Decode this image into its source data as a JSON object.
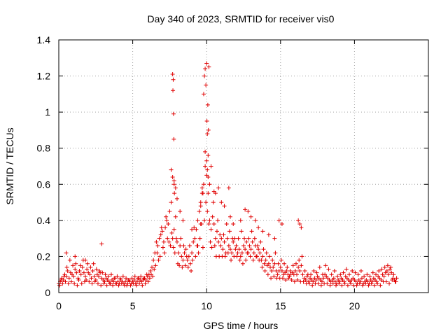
{
  "chart_data": {
    "type": "scatter",
    "title": "Day 340 of 2023, SRMTID for receiver vis0",
    "xlabel": "GPS time / hours",
    "ylabel": "SRMTID / TECUs",
    "xlim": [
      0,
      25
    ],
    "ylim": [
      0,
      1.4
    ],
    "xticks": [
      0,
      5,
      10,
      15,
      20
    ],
    "xtick_labels": [
      "0",
      "5",
      "10",
      "15",
      "20"
    ],
    "yticks": [
      0,
      0.2,
      0.4,
      0.6,
      0.8,
      1.0,
      1.2,
      1.4
    ],
    "ytick_labels": [
      "0",
      "0.2",
      "0.4",
      "0.6",
      "0.8",
      "1",
      "1.2",
      "1.4"
    ],
    "grid": true,
    "marker": "+",
    "marker_color": "#e00000",
    "series": [
      {
        "name": "vis0",
        "x": [
          0.0,
          0.1,
          0.2,
          0.3,
          0.4,
          0.5,
          0.6,
          0.7,
          0.8,
          0.9,
          1.0,
          1.1,
          1.2,
          1.3,
          1.4,
          1.5,
          1.6,
          1.7,
          1.8,
          1.9,
          2.0,
          2.1,
          2.2,
          2.3,
          2.4,
          2.5,
          2.6,
          2.7,
          2.8,
          2.9,
          3.0,
          3.1,
          3.2,
          3.3,
          3.4,
          3.5,
          3.6,
          3.7,
          3.8,
          3.9,
          4.0,
          4.1,
          4.2,
          4.3,
          4.4,
          4.5,
          4.6,
          4.7,
          4.8,
          4.9,
          5.0,
          5.1,
          5.2,
          5.3,
          5.4,
          5.5,
          5.6,
          5.7,
          5.8,
          5.9,
          6.0,
          6.1,
          6.2,
          6.3,
          6.4,
          6.5,
          6.6,
          6.7,
          6.8,
          6.9,
          7.0,
          7.1,
          7.2,
          7.3,
          7.4,
          7.5,
          7.6,
          7.7,
          7.8,
          7.9,
          8.0,
          8.1,
          8.2,
          8.3,
          8.4,
          8.5,
          8.6,
          8.7,
          8.8,
          8.9,
          9.0,
          9.1,
          9.2,
          9.3,
          9.4,
          9.5,
          9.6,
          9.7,
          9.8,
          9.9,
          10.0,
          10.1,
          10.2,
          10.3,
          10.4,
          10.5,
          10.6,
          10.7,
          10.8,
          10.9,
          11.0,
          11.1,
          11.2,
          11.3,
          11.4,
          11.5,
          11.6,
          11.7,
          11.8,
          11.9,
          12.0,
          12.1,
          12.2,
          12.3,
          12.4,
          12.5,
          12.6,
          12.7,
          12.8,
          12.9,
          13.0,
          13.1,
          13.2,
          13.3,
          13.4,
          13.5,
          13.6,
          13.7,
          13.8,
          13.9,
          14.0,
          14.1,
          14.2,
          14.3,
          14.4,
          14.5,
          14.6,
          14.7,
          14.8,
          14.9,
          15.0,
          15.1,
          15.2,
          15.3,
          15.4,
          15.5,
          15.6,
          15.7,
          15.8,
          15.9,
          16.0,
          16.1,
          16.2,
          16.3,
          16.4,
          16.5,
          16.6,
          16.7,
          16.8,
          16.9,
          17.0,
          17.1,
          17.2,
          17.3,
          17.4,
          17.5,
          17.6,
          17.7,
          17.8,
          17.9,
          18.0,
          18.1,
          18.2,
          18.3,
          18.4,
          18.5,
          18.6,
          18.7,
          18.8,
          18.9,
          19.0,
          19.1,
          19.2,
          19.3,
          19.4,
          19.5,
          19.6,
          19.7,
          19.8,
          19.9,
          20.0,
          20.1,
          20.2,
          20.3,
          20.4,
          20.5,
          20.6,
          20.7,
          20.8,
          20.9,
          21.0,
          21.1,
          21.2,
          21.3,
          21.4,
          21.5,
          21.6,
          21.7,
          21.8,
          21.9,
          22.0,
          22.1,
          22.2,
          22.3,
          22.4,
          22.5,
          22.6,
          22.7,
          22.8,
          0.05,
          0.15,
          0.25,
          0.35,
          0.45,
          0.55,
          0.65,
          0.75,
          0.85,
          0.95,
          1.05,
          1.15,
          1.25,
          1.35,
          1.45,
          1.55,
          1.65,
          1.75,
          1.85,
          1.95,
          2.05,
          2.15,
          2.25,
          2.35,
          2.45,
          2.55,
          2.65,
          2.75,
          2.85,
          2.95,
          3.05,
          3.15,
          3.25,
          3.35,
          3.45,
          3.55,
          3.65,
          3.75,
          3.85,
          3.95,
          4.05,
          4.15,
          4.25,
          4.35,
          4.45,
          4.55,
          4.65,
          4.75,
          4.85,
          4.95,
          5.05,
          5.15,
          5.25,
          5.35,
          5.45,
          5.55,
          5.65,
          5.75,
          5.85,
          5.95,
          6.05,
          6.15,
          6.25,
          6.35,
          6.45,
          6.55,
          6.65,
          6.75,
          6.85,
          6.95,
          7.05,
          7.15,
          7.25,
          7.35,
          7.45,
          7.55,
          7.65,
          7.75,
          7.85,
          7.95,
          8.05,
          8.15,
          8.25,
          8.35,
          8.45,
          8.55,
          8.65,
          8.75,
          8.85,
          8.95,
          9.05,
          9.15,
          9.25,
          9.35,
          9.45,
          9.55,
          9.65,
          9.75,
          9.85,
          9.95,
          10.05,
          10.15,
          10.25,
          10.35,
          10.45,
          10.55,
          10.65,
          10.75,
          10.85,
          10.95,
          11.05,
          11.15,
          11.25,
          11.35,
          11.45,
          11.55,
          11.65,
          11.75,
          11.85,
          11.95,
          12.05,
          12.15,
          12.25,
          12.35,
          12.45,
          12.55,
          12.65,
          12.75,
          12.85,
          12.95,
          13.05,
          13.15,
          13.25,
          13.35,
          13.45,
          13.55,
          13.65,
          13.75,
          13.85,
          13.95,
          14.05,
          14.15,
          14.25,
          14.35,
          14.45,
          14.55,
          14.65,
          14.75,
          14.85,
          14.95,
          15.05,
          15.15,
          15.25,
          15.35,
          15.45,
          15.55,
          15.65,
          15.75,
          15.85,
          15.95,
          16.05,
          16.15,
          16.25,
          16.35,
          16.45,
          16.55,
          16.65,
          16.75,
          16.85,
          16.95,
          17.05,
          17.15,
          17.25,
          17.35,
          17.45,
          17.55,
          17.65,
          17.75,
          17.85,
          17.95,
          18.05,
          18.15,
          18.25,
          18.35,
          18.45,
          18.55,
          18.65,
          18.75,
          18.85,
          18.95,
          19.05,
          19.15,
          19.25,
          19.35,
          19.45,
          19.55,
          19.65,
          19.75,
          19.85,
          19.95,
          20.05,
          20.15,
          20.25,
          20.35,
          20.45,
          20.55,
          20.65,
          20.75,
          20.85,
          20.95,
          21.05,
          21.15,
          21.25,
          21.35,
          21.45,
          21.55,
          21.65,
          21.75,
          21.85,
          21.95,
          22.05,
          22.15,
          22.25,
          22.35,
          22.45,
          22.55,
          22.65,
          22.75,
          22.85,
          7.7,
          7.72,
          7.74,
          7.76,
          7.78,
          7.8,
          7.82,
          9.8,
          9.85,
          9.9,
          9.95,
          10.0,
          10.02,
          10.05,
          10.08,
          10.1,
          10.12,
          10.15,
          9.6,
          9.7,
          9.75,
          9.9,
          10.0,
          10.05,
          10.1,
          10.2,
          10.3,
          10.5,
          10.6,
          10.8,
          11.0,
          11.2,
          11.5,
          7.6,
          7.7,
          7.8,
          7.9,
          8.0,
          8.2,
          8.4,
          12.8,
          13.0,
          13.3,
          14.9,
          15.1,
          16.2,
          16.3,
          16.4,
          0.5,
          1.1,
          1.8,
          2.9,
          9.0,
          9.4,
          9.6,
          11.6,
          11.8,
          12.3,
          12.6,
          13.5,
          13.8,
          14.2,
          14.6
        ],
        "y": [
          0.05,
          0.06,
          0.08,
          0.07,
          0.1,
          0.09,
          0.12,
          0.08,
          0.11,
          0.1,
          0.09,
          0.13,
          0.11,
          0.08,
          0.12,
          0.1,
          0.14,
          0.11,
          0.09,
          0.13,
          0.11,
          0.1,
          0.08,
          0.12,
          0.09,
          0.07,
          0.1,
          0.09,
          0.11,
          0.08,
          0.07,
          0.06,
          0.08,
          0.07,
          0.06,
          0.05,
          0.07,
          0.06,
          0.08,
          0.05,
          0.06,
          0.05,
          0.07,
          0.06,
          0.05,
          0.06,
          0.04,
          0.07,
          0.06,
          0.05,
          0.06,
          0.07,
          0.05,
          0.06,
          0.08,
          0.07,
          0.06,
          0.07,
          0.08,
          0.07,
          0.09,
          0.1,
          0.12,
          0.14,
          0.18,
          0.22,
          0.28,
          0.26,
          0.3,
          0.32,
          0.34,
          0.28,
          0.36,
          0.4,
          0.38,
          0.45,
          0.5,
          0.3,
          0.35,
          0.42,
          0.28,
          0.22,
          0.26,
          0.2,
          0.18,
          0.22,
          0.24,
          0.18,
          0.2,
          0.16,
          0.22,
          0.28,
          0.3,
          0.35,
          0.4,
          0.45,
          0.48,
          0.55,
          0.6,
          0.7,
          0.65,
          0.55,
          0.4,
          0.35,
          0.42,
          0.38,
          0.3,
          0.34,
          0.28,
          0.32,
          0.3,
          0.24,
          0.28,
          0.22,
          0.3,
          0.26,
          0.24,
          0.22,
          0.28,
          0.3,
          0.26,
          0.22,
          0.24,
          0.2,
          0.22,
          0.26,
          0.24,
          0.28,
          0.22,
          0.26,
          0.24,
          0.28,
          0.22,
          0.26,
          0.2,
          0.24,
          0.22,
          0.18,
          0.2,
          0.16,
          0.18,
          0.15,
          0.16,
          0.14,
          0.12,
          0.14,
          0.16,
          0.12,
          0.1,
          0.12,
          0.14,
          0.12,
          0.1,
          0.11,
          0.12,
          0.1,
          0.09,
          0.1,
          0.11,
          0.1,
          0.12,
          0.1,
          0.14,
          0.12,
          0.15,
          0.1,
          0.08,
          0.07,
          0.09,
          0.06,
          0.08,
          0.07,
          0.06,
          0.08,
          0.07,
          0.09,
          0.08,
          0.07,
          0.06,
          0.08,
          0.1,
          0.09,
          0.08,
          0.07,
          0.06,
          0.07,
          0.08,
          0.06,
          0.05,
          0.07,
          0.06,
          0.08,
          0.07,
          0.06,
          0.09,
          0.08,
          0.07,
          0.06,
          0.07,
          0.08,
          0.07,
          0.06,
          0.05,
          0.07,
          0.06,
          0.08,
          0.05,
          0.06,
          0.07,
          0.06,
          0.05,
          0.07,
          0.06,
          0.08,
          0.07,
          0.06,
          0.09,
          0.08,
          0.07,
          0.1,
          0.09,
          0.11,
          0.12,
          0.1,
          0.13,
          0.11,
          0.08,
          0.07,
          0.06,
          0.04,
          0.07,
          0.05,
          0.09,
          0.06,
          0.14,
          0.05,
          0.18,
          0.06,
          0.15,
          0.05,
          0.16,
          0.04,
          0.07,
          0.15,
          0.05,
          0.18,
          0.06,
          0.07,
          0.16,
          0.06,
          0.14,
          0.05,
          0.16,
          0.06,
          0.13,
          0.05,
          0.12,
          0.04,
          0.11,
          0.05,
          0.1,
          0.04,
          0.09,
          0.05,
          0.1,
          0.04,
          0.08,
          0.05,
          0.09,
          0.04,
          0.08,
          0.05,
          0.09,
          0.04,
          0.08,
          0.05,
          0.07,
          0.04,
          0.08,
          0.05,
          0.09,
          0.04,
          0.08,
          0.05,
          0.09,
          0.04,
          0.08,
          0.05,
          0.1,
          0.06,
          0.08,
          0.1,
          0.09,
          0.13,
          0.15,
          0.22,
          0.18,
          0.2,
          0.36,
          0.25,
          0.22,
          0.42,
          0.3,
          0.28,
          0.26,
          0.33,
          0.25,
          0.22,
          0.3,
          0.16,
          0.15,
          0.3,
          0.14,
          0.26,
          0.15,
          0.2,
          0.14,
          0.26,
          0.12,
          0.18,
          0.36,
          0.2,
          0.26,
          0.22,
          0.3,
          0.38,
          0.25,
          0.4,
          0.5,
          0.45,
          0.38,
          0.28,
          0.25,
          0.5,
          0.26,
          0.2,
          0.4,
          0.2,
          0.26,
          0.2,
          0.32,
          0.2,
          0.38,
          0.22,
          0.34,
          0.18,
          0.3,
          0.2,
          0.24,
          0.2,
          0.3,
          0.18,
          0.34,
          0.16,
          0.3,
          0.18,
          0.22,
          0.3,
          0.2,
          0.34,
          0.18,
          0.3,
          0.2,
          0.26,
          0.18,
          0.28,
          0.14,
          0.24,
          0.12,
          0.22,
          0.1,
          0.2,
          0.08,
          0.18,
          0.09,
          0.22,
          0.08,
          0.16,
          0.08,
          0.18,
          0.08,
          0.16,
          0.07,
          0.14,
          0.08,
          0.12,
          0.07,
          0.15,
          0.06,
          0.16,
          0.07,
          0.18,
          0.06,
          0.2,
          0.06,
          0.12,
          0.05,
          0.1,
          0.05,
          0.1,
          0.04,
          0.12,
          0.05,
          0.11,
          0.05,
          0.14,
          0.04,
          0.1,
          0.05,
          0.15,
          0.05,
          0.13,
          0.04,
          0.1,
          0.05,
          0.12,
          0.04,
          0.09,
          0.05,
          0.1,
          0.04,
          0.11,
          0.05,
          0.13,
          0.04,
          0.1,
          0.05,
          0.12,
          0.04,
          0.11,
          0.04,
          0.1,
          0.05,
          0.12,
          0.04,
          0.09,
          0.05,
          0.1,
          0.04,
          0.09,
          0.05,
          0.11,
          0.04,
          0.1,
          0.05,
          0.12,
          0.04,
          0.13,
          0.06,
          0.14,
          0.06,
          0.15,
          0.05,
          0.14,
          0.07,
          0.1,
          0.06,
          0.08,
          1.21,
          1.12,
          1.18,
          0.99,
          0.85,
          0.62,
          0.55,
          1.1,
          1.2,
          1.24,
          1.15,
          1.27,
          0.95,
          0.88,
          1.04,
          0.76,
          0.9,
          1.25,
          0.5,
          0.58,
          0.55,
          0.78,
          0.73,
          0.68,
          0.64,
          0.6,
          0.7,
          0.56,
          0.55,
          0.58,
          0.5,
          0.48,
          0.58,
          0.68,
          0.64,
          0.6,
          0.58,
          0.52,
          0.45,
          0.4,
          0.45,
          0.42,
          0.4,
          0.4,
          0.38,
          0.4,
          0.38,
          0.36,
          0.22,
          0.2,
          0.18,
          0.27,
          0.35,
          0.26,
          0.38,
          0.42,
          0.38,
          0.4,
          0.46,
          0.36,
          0.34,
          0.32,
          0.3
        ]
      }
    ]
  }
}
